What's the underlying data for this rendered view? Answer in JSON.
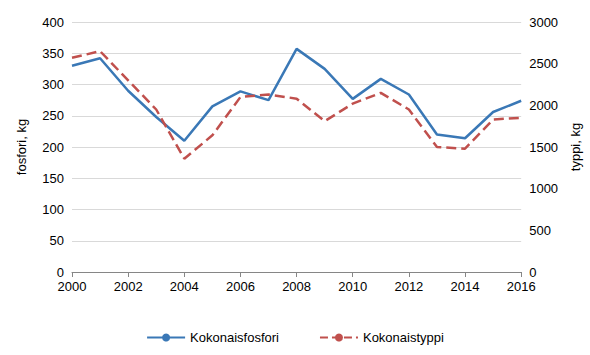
{
  "chart_data": {
    "type": "line",
    "x": [
      2000,
      2001,
      2002,
      2003,
      2004,
      2005,
      2006,
      2007,
      2008,
      2009,
      2010,
      2011,
      2012,
      2013,
      2014,
      2015,
      2016
    ],
    "xlim": [
      2000,
      2016
    ],
    "xticks": [
      2000,
      2002,
      2004,
      2006,
      2008,
      2010,
      2012,
      2014,
      2016
    ],
    "ylabel": "fosfori, kg",
    "ylim": [
      0,
      400
    ],
    "yticks": [
      0,
      50,
      100,
      150,
      200,
      250,
      300,
      350,
      400
    ],
    "y2label": "typpi, kg",
    "y2lim": [
      0,
      3000
    ],
    "y2ticks": [
      0,
      500,
      1000,
      1500,
      2000,
      2500,
      3000
    ],
    "grid": true,
    "legend": "bottom",
    "series": [
      {
        "name": "Kokonaisfosfori",
        "color": "#3a78b6",
        "line_style": "solid",
        "marker": "none",
        "values": [
          330,
          342,
          290,
          248,
          210,
          265,
          289,
          275,
          357,
          325,
          277,
          309,
          284,
          220,
          214,
          256,
          274
        ]
      },
      {
        "name": "Kokonaistyppi",
        "color": "#c0504d",
        "line_style": "dashed",
        "marker": "none",
        "axis": "y2",
        "values": [
          2570,
          2650,
          2300,
          1950,
          1360,
          1640,
          2100,
          2130,
          2080,
          1810,
          2020,
          2150,
          1950,
          1500,
          1480,
          1830,
          1850
        ]
      }
    ]
  }
}
